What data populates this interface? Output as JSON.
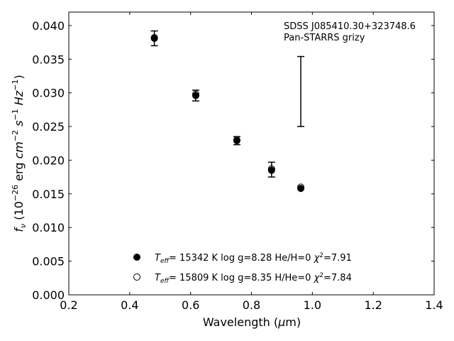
{
  "chart_data": {
    "type": "scatter",
    "xlabel": "Wavelength (μm)",
    "ylabel": "f_ν (10^−26 erg cm^−2 s^−1 Hz^−1)",
    "xlim": [
      0.2,
      1.4
    ],
    "ylim": [
      0.0,
      0.042
    ],
    "xticks": [
      0.2,
      0.4,
      0.6,
      0.8,
      1.0,
      1.2,
      1.4
    ],
    "xtick_labels": [
      "0.2",
      "0.4",
      "0.6",
      "0.8",
      "1.0",
      "1.2",
      "1.4"
    ],
    "yticks": [
      0.0,
      0.005,
      0.01,
      0.015,
      0.02,
      0.025,
      0.03,
      0.035,
      0.04
    ],
    "ytick_labels": [
      "0.000",
      "0.005",
      "0.010",
      "0.015",
      "0.020",
      "0.025",
      "0.030",
      "0.035",
      "0.040"
    ],
    "grid": false,
    "annotations": [
      "SDSS J085410.30+323748.6",
      "Pan-STARRS grizy"
    ],
    "legend_location": "lower-center",
    "observed": {
      "x": [
        0.481,
        0.617,
        0.752,
        0.866,
        0.962
      ],
      "y": [
        0.0381,
        0.0296,
        0.0229,
        0.0186,
        0.0302
      ],
      "yerr": [
        0.0011,
        0.0008,
        0.0006,
        0.0011,
        0.0052
      ]
    },
    "series": [
      {
        "label": "T_eff= 15342 K  log g=8.28  He/H=0  χ²=7.91",
        "marker": "filled-circle",
        "x": [
          0.481,
          0.617,
          0.752,
          0.866,
          0.962
        ],
        "y": [
          0.0381,
          0.0296,
          0.0229,
          0.0185,
          0.0158
        ]
      },
      {
        "label": "T_eff= 15809 K  log g=8.35  H/He=0  χ²=7.84",
        "marker": "open-circle",
        "x": [
          0.481,
          0.617,
          0.752,
          0.866,
          0.962
        ],
        "y": [
          0.0382,
          0.0298,
          0.023,
          0.0187,
          0.016
        ]
      }
    ]
  }
}
